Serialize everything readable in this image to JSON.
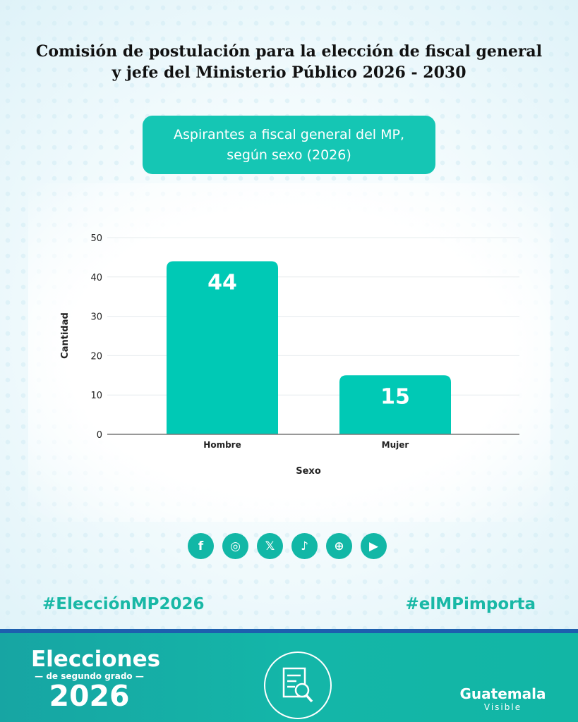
{
  "header": {
    "title_line1": "Comisión de postulación para la elección de fiscal general",
    "title_line2": "y jefe del Ministerio Público 2026 - 2030"
  },
  "chart_data": {
    "type": "bar",
    "title_line1": "Aspirantes a fiscal general del MP,",
    "title_line2": "según sexo (2026)",
    "categories": [
      "Hombre",
      "Mujer"
    ],
    "values": [
      44,
      15
    ],
    "xlabel": "Sexo",
    "ylabel": "Cantidad",
    "ylim": [
      0,
      50
    ],
    "yticks": [
      0,
      10,
      20,
      30,
      40,
      50
    ],
    "grid": true,
    "bar_color": "#00c9b5"
  },
  "social": {
    "icons": [
      "facebook-icon",
      "instagram-icon",
      "x-icon",
      "tiktok-icon",
      "globe-icon",
      "youtube-icon"
    ],
    "glyphs": [
      "f",
      "◎",
      "𝕏",
      "♪",
      "⊕",
      "▶"
    ]
  },
  "hashtags": {
    "left": "#ElecciónMP2026",
    "right": "#elMPimporta"
  },
  "footer": {
    "elecciones": "Elecciones",
    "segundo": "— de segundo grado —",
    "year": "2026",
    "org_name": "Guatemala",
    "org_sub": "Visible"
  }
}
